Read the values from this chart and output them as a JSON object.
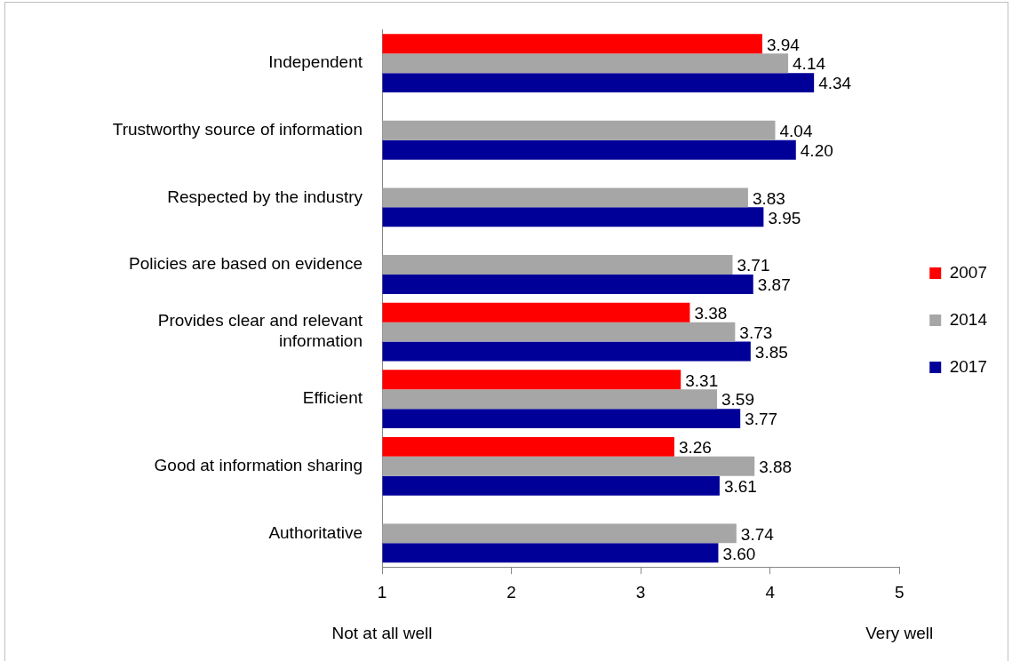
{
  "chart_data": {
    "type": "bar",
    "orientation": "horizontal",
    "categories": [
      "Independent",
      "Trustworthy source of information",
      "Respected by the industry",
      "Policies are based on evidence",
      "Provides clear and relevant information",
      "Efficient",
      "Good at information sharing",
      "Authoritative"
    ],
    "series": [
      {
        "name": "2007",
        "color": "#ff0000",
        "values": [
          3.94,
          null,
          null,
          null,
          3.38,
          3.31,
          3.26,
          null
        ],
        "value_labels": [
          "3.94",
          null,
          null,
          null,
          "3.38",
          "3.31",
          "3.26",
          null
        ]
      },
      {
        "name": "2014",
        "color": "#a6a6a6",
        "values": [
          4.14,
          4.04,
          3.83,
          3.71,
          3.73,
          3.59,
          3.88,
          3.74
        ],
        "value_labels": [
          "4.14",
          "4.04",
          "3.83",
          "3.71",
          "3.73",
          "3.59",
          "3.88",
          "3.74"
        ]
      },
      {
        "name": "2017",
        "color": "#000099",
        "values": [
          4.34,
          4.2,
          3.95,
          3.87,
          3.85,
          3.77,
          3.61,
          3.6
        ],
        "value_labels": [
          "4.34",
          "4.20",
          "3.95",
          "3.87",
          "3.85",
          "3.77",
          "3.61",
          "3.60"
        ]
      }
    ],
    "xlim": [
      1,
      5
    ],
    "xticks": [
      1,
      2,
      3,
      4,
      5
    ],
    "annotations": [
      "Not at all well",
      "Very well"
    ],
    "grid": false,
    "legend": "right"
  }
}
